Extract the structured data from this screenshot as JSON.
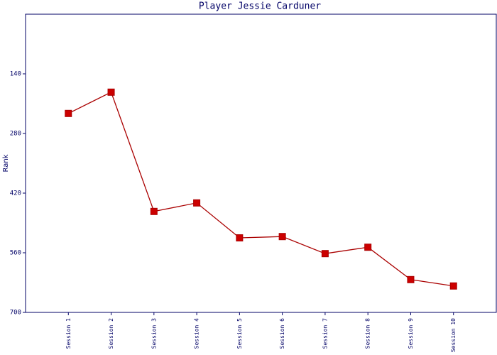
{
  "chart_data": {
    "type": "line",
    "title": "Player Jessie Carduner",
    "y_label": "Rank",
    "categories": [
      "Session 1",
      "Session 2",
      "Session 3",
      "Session 4",
      "Session 5",
      "Session 6",
      "Session 7",
      "Session 8",
      "Session 9",
      "Session 10"
    ],
    "series": [
      {
        "name": "Rank",
        "color": "#aa0000",
        "values": [
          233,
          183,
          463,
          443,
          525,
          522,
          562,
          547,
          623,
          638
        ]
      }
    ],
    "ylim": [
      700,
      0
    ],
    "yticks": [
      140,
      280,
      420,
      560,
      700
    ]
  }
}
